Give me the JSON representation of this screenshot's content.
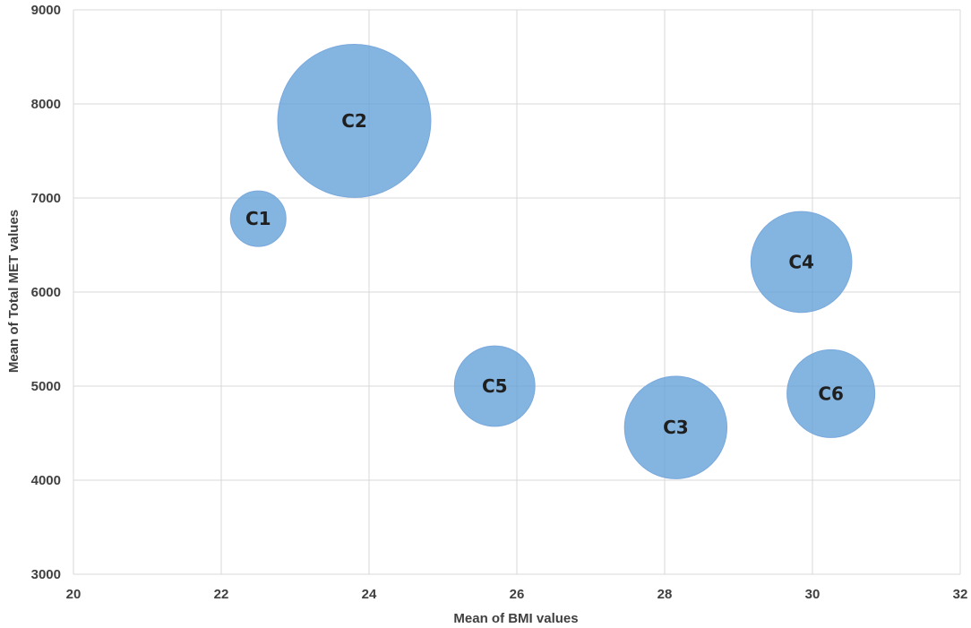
{
  "chart_data": {
    "type": "scatter",
    "variant": "bubble",
    "title": "",
    "xlabel": "Mean of BMI values",
    "ylabel": "Mean of Total MET values",
    "xlim": [
      20,
      32
    ],
    "ylim": [
      3000,
      9000
    ],
    "x_ticks": [
      20,
      22,
      24,
      26,
      28,
      30,
      32
    ],
    "y_ticks": [
      3000,
      4000,
      5000,
      6000,
      7000,
      8000,
      9000
    ],
    "grid": true,
    "legend": "none",
    "bubble_color": "#5b9bd5",
    "points": [
      {
        "label": "C1",
        "x": 22.5,
        "y": 6780,
        "size": 1.0
      },
      {
        "label": "C2",
        "x": 23.8,
        "y": 7820,
        "size": 7.6
      },
      {
        "label": "C3",
        "x": 28.15,
        "y": 4560,
        "size": 3.4
      },
      {
        "label": "C4",
        "x": 29.85,
        "y": 6320,
        "size": 3.3
      },
      {
        "label": "C5",
        "x": 25.7,
        "y": 5000,
        "size": 2.1
      },
      {
        "label": "C6",
        "x": 30.25,
        "y": 4920,
        "size": 2.5
      }
    ]
  }
}
